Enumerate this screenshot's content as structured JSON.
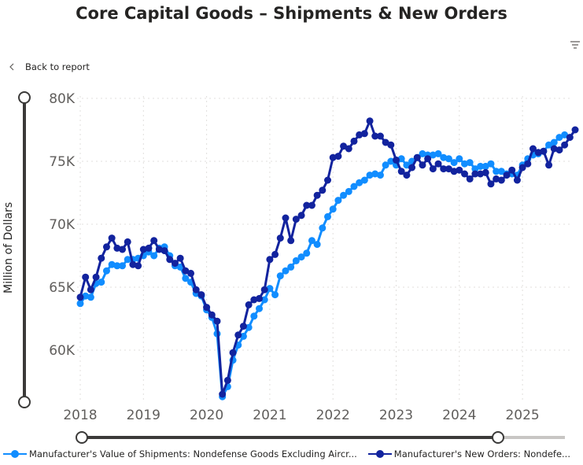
{
  "header": {
    "title": "Core Capital Goods – Shipments & New Orders",
    "back_label": "Back to report",
    "filter_icon": "filter-icon",
    "back_icon": "chevron-left-icon"
  },
  "colors": {
    "shipments": "#118DFF",
    "orders": "#12239E"
  },
  "legend": {
    "items": [
      "Manufacturer's Value of Shipments: Nondefense Goods Excluding Aircr...",
      "Manufacturer's New Orders: Nondefe..."
    ]
  },
  "chart_data": {
    "type": "line",
    "title": "Core Capital Goods – Shipments & New Orders",
    "ylabel": "Million of Dollars",
    "xlabel": "",
    "x_start": "2018-01",
    "frequency": "monthly",
    "x_ticks": [
      "2018",
      "2019",
      "2020",
      "2021",
      "2022",
      "2023",
      "2024",
      "2025"
    ],
    "y_ticks": [
      60000,
      65000,
      70000,
      75000,
      80000
    ],
    "y_tick_labels": [
      "60K",
      "65K",
      "70K",
      "75K",
      "80K"
    ],
    "ylim": [
      55900,
      80000
    ],
    "grid": true,
    "legend": "bottom",
    "series": [
      {
        "name": "Manufacturer's Value of Shipments: Nondefense Goods Excluding Aircr...",
        "values": [
          63700,
          64300,
          64200,
          65300,
          65400,
          66300,
          66800,
          66700,
          66700,
          67200,
          67200,
          67300,
          67500,
          67800,
          67500,
          68100,
          68200,
          67500,
          66700,
          66600,
          65700,
          65400,
          64500,
          64300,
          63200,
          62600,
          61300,
          56300,
          57100,
          59200,
          60400,
          61100,
          61800,
          62700,
          63300,
          64000,
          64900,
          64400,
          65900,
          66300,
          66600,
          67100,
          67400,
          67700,
          68700,
          68400,
          69700,
          70600,
          71200,
          71900,
          72300,
          72600,
          73000,
          73300,
          73500,
          73900,
          74000,
          73900,
          74700,
          75000,
          74700,
          75200,
          74700,
          75000,
          75300,
          75600,
          75500,
          75500,
          75600,
          75300,
          75200,
          74900,
          75200,
          74800,
          74900,
          74400,
          74600,
          74600,
          74800,
          74200,
          74200,
          74000,
          74000,
          73900,
          74700,
          75200,
          75500,
          75600,
          75800,
          76300,
          76500,
          76900,
          77100
        ]
      },
      {
        "name": "Manufacturer's New Orders: Nondefe...",
        "values": [
          64200,
          65800,
          64800,
          65800,
          67300,
          68200,
          68900,
          68100,
          68000,
          68600,
          66800,
          66700,
          68000,
          68100,
          68700,
          68000,
          67900,
          67200,
          66900,
          67300,
          66300,
          66100,
          64800,
          64400,
          63400,
          62800,
          62300,
          56500,
          57600,
          59800,
          61200,
          61900,
          63600,
          64000,
          64100,
          64800,
          67200,
          67600,
          68900,
          70500,
          68700,
          70400,
          70700,
          71500,
          71500,
          72300,
          72700,
          73500,
          75300,
          75400,
          76200,
          76000,
          76600,
          77100,
          77200,
          78200,
          77000,
          77000,
          76500,
          76300,
          75100,
          74200,
          73900,
          74500,
          75300,
          74700,
          75200,
          74400,
          74800,
          74400,
          74400,
          74200,
          74300,
          74000,
          73600,
          74000,
          74000,
          74100,
          73200,
          73600,
          73500,
          73900,
          74300,
          73500,
          74500,
          74800,
          76000,
          75700,
          75800,
          74700,
          76000,
          75900,
          76300,
          76900,
          77500
        ]
      }
    ]
  }
}
